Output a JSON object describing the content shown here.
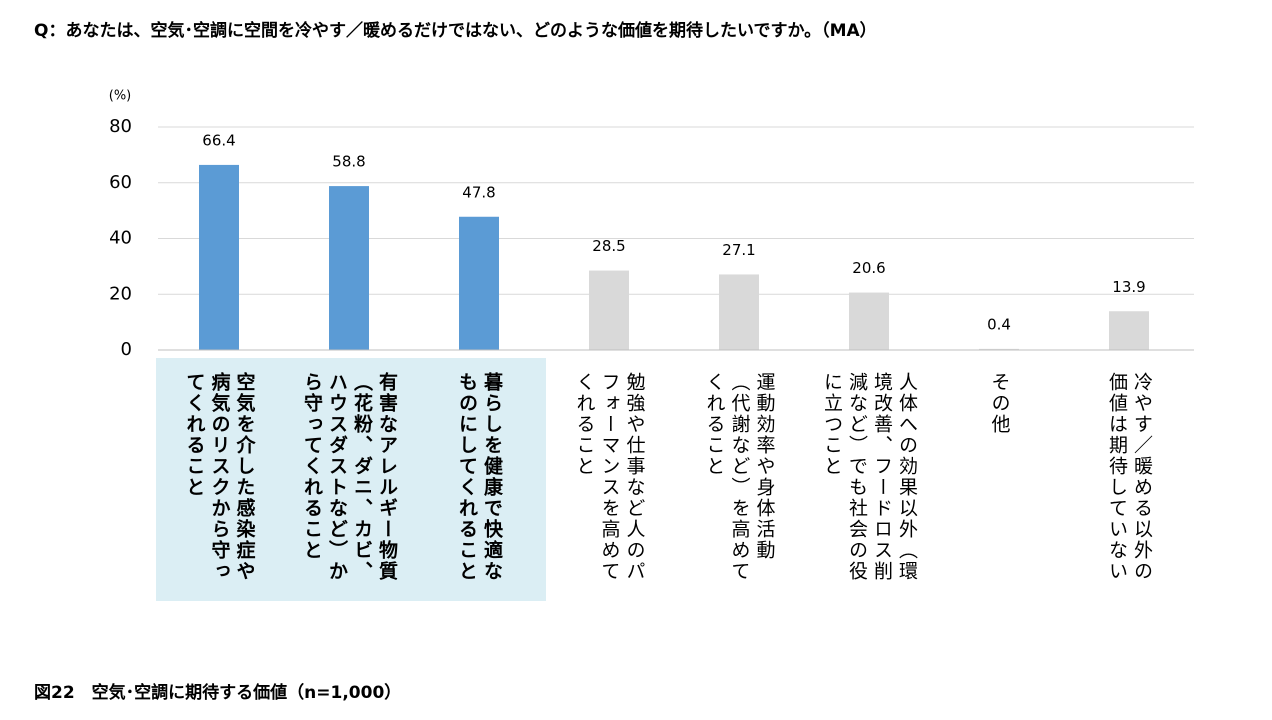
{
  "chart_data": {
    "type": "bar",
    "title": "Q：あなたは、空気･空調に空間を冷やす／暖めるだけではない、どのような価値を期待したいですか。（MA）",
    "caption": "図22　空気･空調に期待する価値（n=1,000）",
    "y_unit": "(%)",
    "categories": [
      "空気を介した感染症や病気のリスクから守ってくれること",
      "有害なアレルギー物質（花粉、ダニ、カビ、ハウスダストなど）から守ってくれること",
      "暮らしを健康で快適なものにしてくれること",
      "勉強や仕事など人のパフォーマンスを高めてくれること",
      "運動効率や身体活動（代謝など）を高めてくれること",
      "人体への効果以外（環境改善、フードロス削減など）でも社会の役に立つこと",
      "その他",
      "冷やす／暖める以外の価値は期待していない"
    ],
    "values": [
      66.4,
      58.8,
      47.8,
      28.5,
      27.1,
      20.6,
      0.4,
      13.9
    ],
    "colors": [
      "#5b9bd5",
      "#5b9bd5",
      "#5b9bd5",
      "#d9d9d9",
      "#d9d9d9",
      "#d9d9d9",
      "#d9d9d9",
      "#d9d9d9"
    ],
    "ylim": [
      0,
      80
    ],
    "yticks": [
      0,
      20,
      40,
      60,
      80
    ],
    "grid": true
  }
}
